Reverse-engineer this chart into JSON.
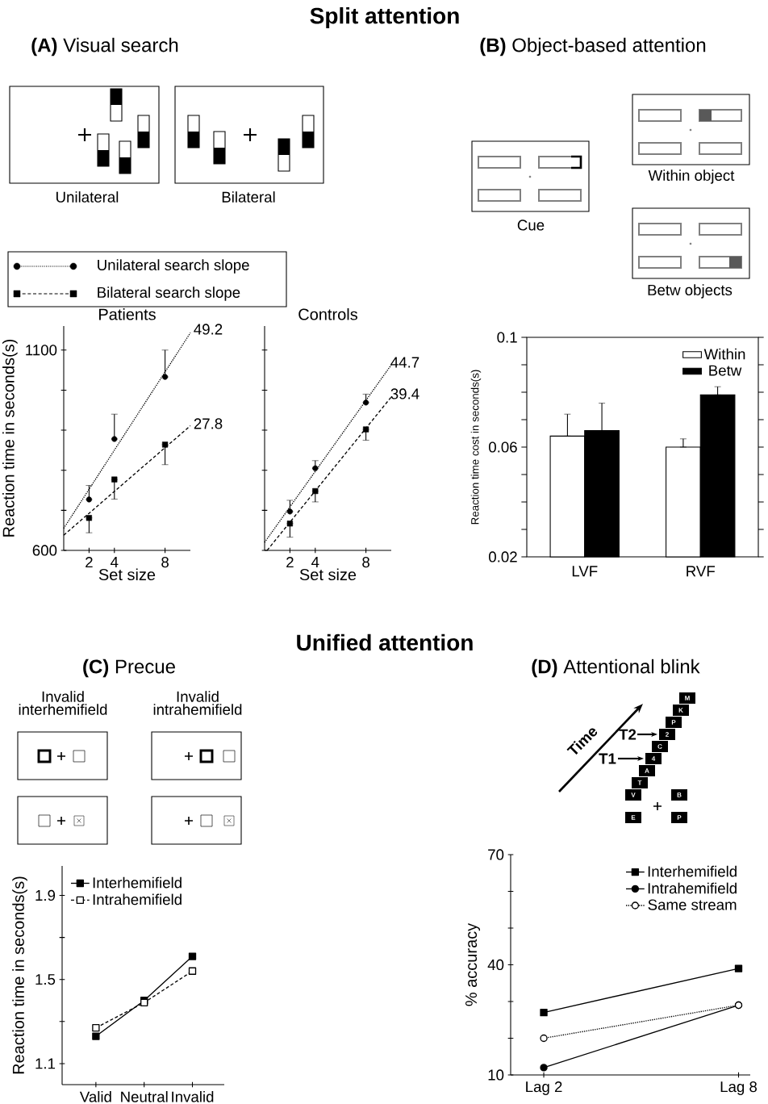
{
  "chart_data": [
    {
      "type": "line",
      "title": "Patients",
      "xlabel": "Set size",
      "ylabel": "Reaction time in seconds(s)",
      "xlim": [
        0,
        10
      ],
      "ylim": [
        600,
        1160
      ],
      "xticks": [
        2,
        4,
        8
      ],
      "yticks": [
        600,
        {
          "value": 700,
          "label": null
        },
        {
          "value": 800,
          "label": null
        },
        {
          "value": 900,
          "label": null
        },
        {
          "value": 1000,
          "label": null
        },
        1100
      ],
      "legend": "top",
      "series": [
        {
          "name": "Unilateral search slope",
          "type": "line",
          "x": [
            0,
            10
          ],
          "values": [
            655,
            1143
          ],
          "color": "#000000",
          "line_style": "dotted"
        },
        {
          "name": "Bilateral search slope",
          "type": "line",
          "x": [
            0,
            10
          ],
          "values": [
            638,
            911
          ],
          "color": "#000000",
          "line_style": "dashed"
        },
        {
          "type": "scatter",
          "x": [
            2,
            4,
            8
          ],
          "values": [
            727,
            878,
            1033
          ],
          "errors": [
            [
              727,
              762
            ],
            [
              878,
              940
            ],
            [
              1033,
              1100
            ]
          ],
          "color": "#000000",
          "marker": "circle"
        },
        {
          "type": "scatter",
          "x": [
            2,
            4,
            8
          ],
          "values": [
            681,
            777,
            864
          ],
          "errors": [
            [
              644,
              681
            ],
            [
              728,
              777
            ],
            [
              814,
              864
            ]
          ],
          "color": "#000000",
          "marker": "square"
        }
      ],
      "annotations": [
        "Split attention",
        "**(A)** Visual search",
        "Unilateral",
        "Bilateral",
        "49.2",
        "27.8"
      ]
    },
    {
      "type": "line",
      "title": "Controls",
      "xlabel": "Set size",
      "xlim": [
        0,
        10
      ],
      "ylim": [
        600,
        1160
      ],
      "xticks": [
        2,
        4,
        8
      ],
      "yticks": [
        600,
        700,
        800,
        900,
        1000,
        1100
      ],
      "tick_labels": "x",
      "series": [
        {
          "type": "line",
          "x": [
            0,
            10
          ],
          "values": [
            620,
            1063
          ],
          "color": "#000000",
          "line_style": "dotted"
        },
        {
          "type": "line",
          "x": [
            0.2,
            10
          ],
          "values": [
            600,
            983
          ],
          "color": "#000000",
          "line_style": "dashed"
        },
        {
          "type": "scatter",
          "x": [
            2,
            4,
            8
          ],
          "values": [
            697,
            805,
            969
          ],
          "errors": [
            [
              697,
              725
            ],
            [
              805,
              824
            ],
            [
              969,
              990
            ]
          ],
          "color": "#000000",
          "marker": "circle"
        },
        {
          "type": "scatter",
          "x": [
            2,
            4,
            8
          ],
          "values": [
            667,
            748,
            902
          ],
          "errors": [
            [
              633,
              667
            ],
            [
              721,
              748
            ],
            [
              875,
              902
            ]
          ],
          "color": "#000000",
          "marker": "square"
        }
      ],
      "annotations": [
        "44.7",
        "39.4"
      ]
    },
    {
      "type": "bar",
      "ylabel": "Reaction time cost in seconds(s)",
      "categories": [
        "LVF",
        "RVF"
      ],
      "ylim": [
        0.02,
        0.1
      ],
      "yticks": [
        0.02,
        {
          "value": 0.03,
          "label": null
        },
        {
          "value": 0.04,
          "label": null
        },
        {
          "value": 0.05,
          "label": null
        },
        0.06,
        {
          "value": 0.07,
          "label": null
        },
        {
          "value": 0.08,
          "label": null
        },
        {
          "value": 0.09,
          "label": null
        },
        0.1
      ],
      "legend": "top right",
      "series": [
        {
          "name": "Within",
          "color": "#ffffff",
          "values": [
            0.064,
            0.06
          ],
          "errors": [
            [
              0.064,
              0.072
            ],
            [
              0.06,
              0.063
            ]
          ]
        },
        {
          "name": "Betw",
          "color": "#000000",
          "values": [
            0.066,
            0.079
          ],
          "errors": [
            [
              0.066,
              0.076
            ],
            [
              0.079,
              0.082
            ]
          ]
        }
      ],
      "annotations": [
        "**(B)** Object-based attention",
        "Cue",
        "Within object",
        "Betw objects"
      ]
    },
    {
      "type": "line",
      "ylabel": "Reaction time in seconds(s)",
      "categories": [
        "Valid",
        "Neutral",
        "Invalid"
      ],
      "ylim": [
        1.0,
        2.04
      ],
      "yticks": [
        1.1,
        {
          "value": 1.3,
          "label": null
        },
        1.5,
        {
          "value": 1.7,
          "label": null
        },
        1.9
      ],
      "marker": "square",
      "legend": "top left",
      "series": [
        {
          "name": "Interhemifield",
          "color": "#000000",
          "values": [
            1.23,
            1.4,
            1.61
          ],
          "line_style": "solid"
        },
        {
          "name": "Intrahemifield",
          "color": "#ffffff",
          "values": [
            1.27,
            1.39,
            1.54
          ],
          "line_style": "dashed"
        }
      ],
      "annotations": [
        "Unified attention",
        "**(C)** Precue",
        "Invalid interhemifield",
        "Invalid intrahemifield"
      ]
    },
    {
      "type": "line",
      "ylabel": "% accuracy",
      "categories": [
        "Lag 2",
        "Lag 8"
      ],
      "ylim": [
        10,
        70
      ],
      "yticks": [
        10,
        {
          "value": 20,
          "label": null
        },
        {
          "value": 30,
          "label": null
        },
        40,
        {
          "value": 50,
          "label": null
        },
        {
          "value": 60,
          "label": null
        },
        70
      ],
      "legend": "top right",
      "series": [
        {
          "name": "Interhemifield",
          "color": "#000000",
          "values": [
            27,
            39
          ],
          "marker": "square",
          "line_style": "solid"
        },
        {
          "name": "Intrahemifield",
          "color": "#000000",
          "values": [
            12,
            29
          ],
          "marker": "circle",
          "line_style": "solid"
        },
        {
          "name": "Same stream",
          "color": "#ffffff",
          "values": [
            20,
            29
          ],
          "marker": "circle",
          "line_style": "dotted"
        }
      ],
      "annotations": [
        "**(D)** Attentional blink",
        "Time",
        "T1",
        "T2",
        "V",
        "T",
        "A",
        "4",
        "C",
        "2",
        "P",
        "K",
        "M",
        "B",
        "E",
        "P"
      ]
    }
  ]
}
